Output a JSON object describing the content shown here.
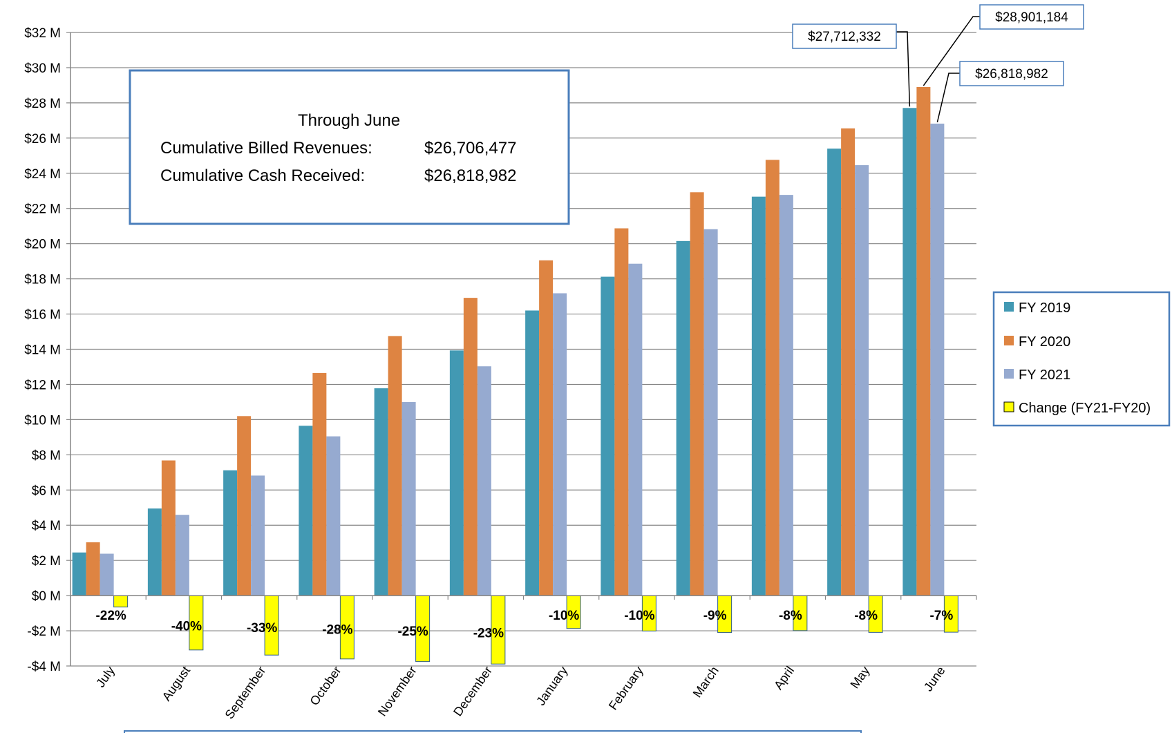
{
  "chart_data": {
    "type": "bar",
    "title": "",
    "xlabel": "",
    "ylabel": "",
    "categories": [
      "July",
      "August",
      "September",
      "October",
      "November",
      "December",
      "January",
      "February",
      "March",
      "April",
      "May",
      "June"
    ],
    "ylim": [
      -4,
      32
    ],
    "ytick_step": 2,
    "ytick_format": "${v} M",
    "grid": true,
    "legend_position": "right",
    "series": [
      {
        "name": "FY 2019",
        "color": "#4299b3",
        "values": [
          2.45,
          4.95,
          7.12,
          9.65,
          11.78,
          13.93,
          16.2,
          18.12,
          20.15,
          22.67,
          25.4,
          27.71
        ]
      },
      {
        "name": "FY 2020",
        "color": "#de8442",
        "values": [
          3.03,
          7.68,
          10.2,
          12.65,
          14.75,
          16.92,
          19.05,
          20.87,
          22.92,
          24.76,
          26.55,
          28.9
        ]
      },
      {
        "name": "FY 2021",
        "color": "#96aad0",
        "values": [
          2.38,
          4.59,
          6.82,
          9.05,
          11.0,
          13.03,
          17.18,
          18.86,
          20.82,
          22.77,
          24.46,
          26.82
        ]
      }
    ],
    "change_series": {
      "name": "Change (FY21-FY20)",
      "color": "#ffff00",
      "border": "#2f5d8a",
      "values": [
        -0.65,
        -3.09,
        -3.38,
        -3.6,
        -3.75,
        -3.89,
        -1.87,
        -2.01,
        -2.1,
        -1.99,
        -2.09,
        -2.08
      ],
      "labels": [
        "-22%",
        "-40%",
        "-33%",
        "-28%",
        "-25%",
        "-23%",
        "-10%",
        "-10%",
        "-9%",
        "-8%",
        "-8%",
        "-7%"
      ]
    },
    "callouts": [
      {
        "text": "$27,712,332",
        "series": 0,
        "category": 11
      },
      {
        "text": "$28,901,184",
        "series": 1,
        "category": 11
      },
      {
        "text": "$26,818,982",
        "series": 2,
        "category": 11
      }
    ]
  },
  "info_box": {
    "line1": "Through June",
    "line2_label": "Cumulative Billed Revenues:",
    "line2_value": "$26,706,477",
    "line3_label": "Cumulative Cash Received:",
    "line3_value": "$26,818,982"
  },
  "colors": {
    "grid": "#868686",
    "box_border": "#4a7ebb"
  }
}
